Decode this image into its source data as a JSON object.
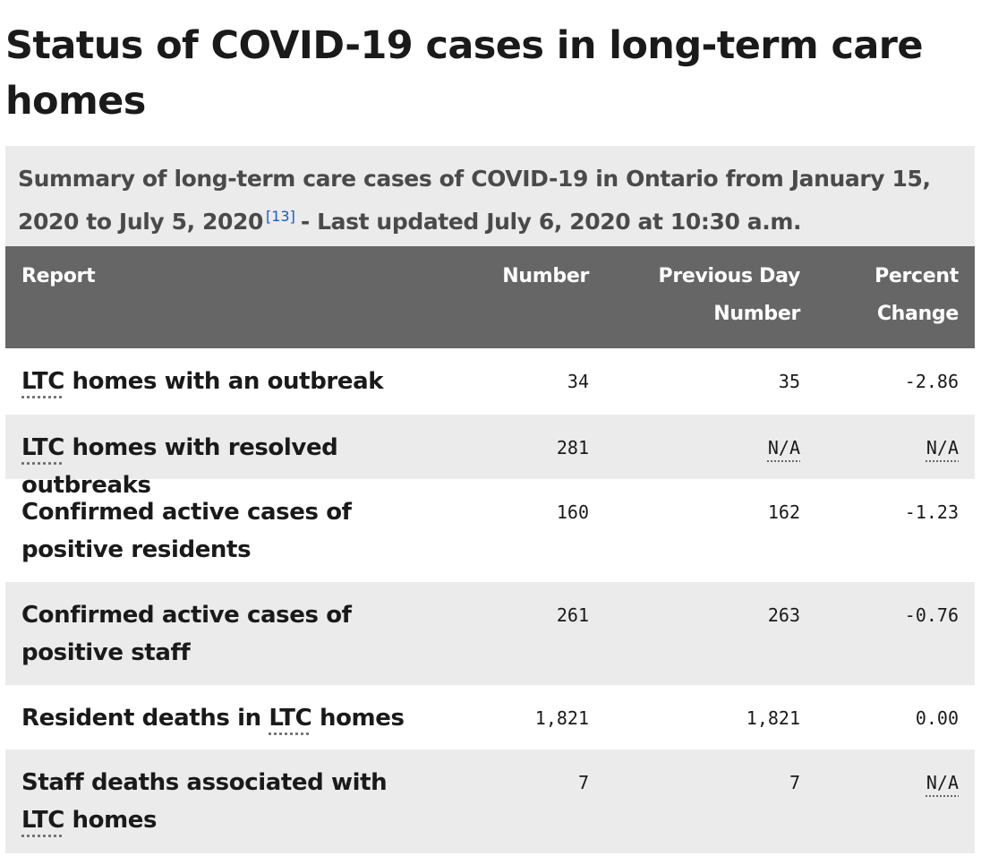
{
  "page": {
    "title": "Status of COVID-19 cases in long-term care homes"
  },
  "table": {
    "caption_part1": "Summary of long-term care cases of COVID-19 in Ontario from January 15, 2020 to July 5, 2020",
    "caption_ref": "[13]",
    "caption_part2": "- Last updated July 6, 2020 at 10:30 a.m.",
    "headers": {
      "report": "Report",
      "number": "Number",
      "previous": "Previous Day Number",
      "percent": "Percent Change"
    },
    "rows": [
      {
        "label_pre": "",
        "label_abbr": "LTC",
        "label_post": " homes with an outbreak",
        "number": "34",
        "previous": "35",
        "percent": "-2.86"
      },
      {
        "label_pre": "",
        "label_abbr": "LTC",
        "label_post": " homes with resolved outbreaks",
        "number": "281",
        "previous": "N/A",
        "percent": "N/A"
      },
      {
        "label_pre": "Confirmed active cases of positive residents",
        "label_abbr": "",
        "label_post": "",
        "number": "160",
        "previous": "162",
        "percent": "-1.23"
      },
      {
        "label_pre": "Confirmed active cases of positive staff",
        "label_abbr": "",
        "label_post": "",
        "number": "261",
        "previous": "263",
        "percent": "-0.76"
      },
      {
        "label_pre": "Resident deaths in ",
        "label_abbr": "LTC",
        "label_post": " homes",
        "number": "1,821",
        "previous": "1,821",
        "percent": "0.00"
      },
      {
        "label_pre": "Staff deaths associated with ",
        "label_abbr": "LTC",
        "label_post": " homes",
        "number": "7",
        "previous": "7",
        "percent": "N/A"
      }
    ]
  }
}
